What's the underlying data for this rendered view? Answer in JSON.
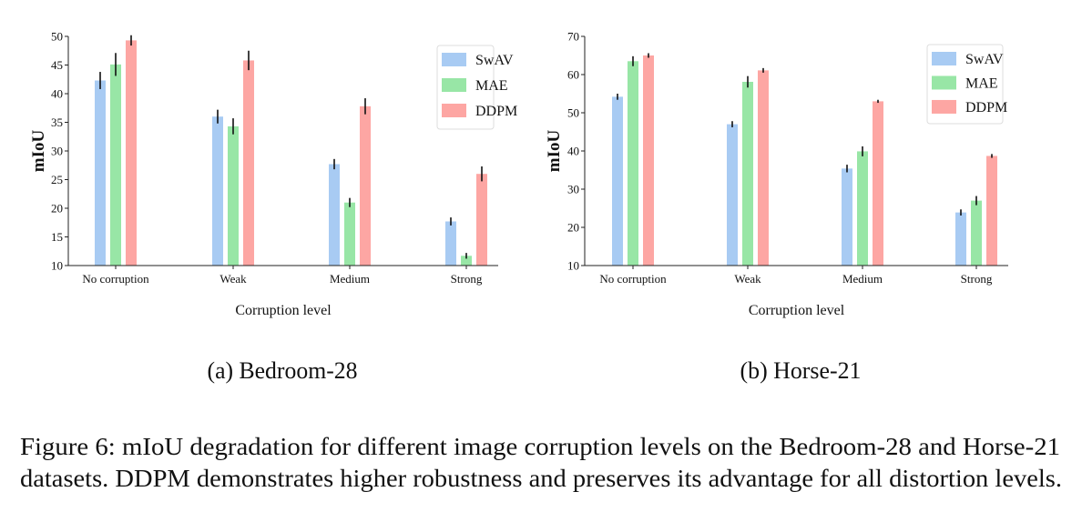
{
  "chart_data": [
    {
      "type": "bar",
      "subtitle": "(a) Bedroom-28",
      "xlabel": "Corruption level",
      "ylabel": "mIoU",
      "ylim": [
        10,
        50
      ],
      "yticks": [
        10,
        15,
        20,
        25,
        30,
        35,
        40,
        45,
        50
      ],
      "categories": [
        "No corruption",
        "Weak",
        "Medium",
        "Strong"
      ],
      "legend_position": "top-right",
      "grid": false,
      "error_bars": true,
      "series": [
        {
          "name": "SwAV",
          "color": "#a8cbf3",
          "values": [
            42.3,
            36.0,
            27.7,
            17.7
          ],
          "errors": [
            1.5,
            1.2,
            0.9,
            0.7
          ]
        },
        {
          "name": "MAE",
          "color": "#98e6a6",
          "values": [
            45.1,
            34.3,
            21.0,
            11.7
          ],
          "errors": [
            2.0,
            1.4,
            0.8,
            0.5
          ]
        },
        {
          "name": "DDPM",
          "color": "#fda6a3",
          "values": [
            49.3,
            45.8,
            37.8,
            26.0
          ],
          "errors": [
            0.9,
            1.7,
            1.4,
            1.3
          ]
        }
      ]
    },
    {
      "type": "bar",
      "subtitle": "(b) Horse-21",
      "xlabel": "Corruption level",
      "ylabel": "mIoU",
      "ylim": [
        10,
        70
      ],
      "yticks": [
        10,
        20,
        30,
        40,
        50,
        60,
        70
      ],
      "categories": [
        "No corruption",
        "Weak",
        "Medium",
        "Strong"
      ],
      "legend_position": "top-right",
      "grid": false,
      "error_bars": true,
      "series": [
        {
          "name": "SwAV",
          "color": "#a8cbf3",
          "values": [
            54.2,
            47.0,
            35.4,
            23.9
          ],
          "errors": [
            0.8,
            0.8,
            1.0,
            0.8
          ]
        },
        {
          "name": "MAE",
          "color": "#98e6a6",
          "values": [
            63.5,
            58.1,
            39.9,
            27.0
          ],
          "errors": [
            1.3,
            1.5,
            1.3,
            1.2
          ]
        },
        {
          "name": "DDPM",
          "color": "#fda6a3",
          "values": [
            65.0,
            61.1,
            53.0,
            38.7
          ],
          "errors": [
            0.6,
            0.6,
            0.4,
            0.5
          ]
        }
      ]
    }
  ],
  "caption": {
    "line1": "Figure 6: mIoU degradation for different image corruption levels on the Bedroom-28 and Horse-21",
    "line2": "datasets. DDPM demonstrates higher robustness and preserves its advantage for all distortion levels."
  }
}
